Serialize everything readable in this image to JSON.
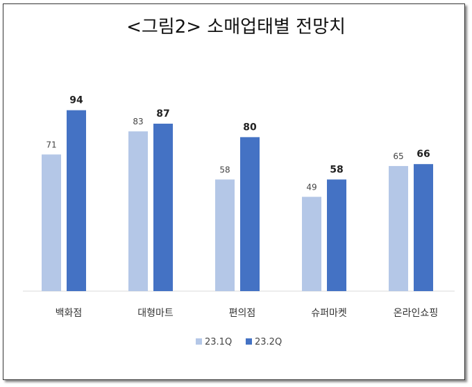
{
  "chart_data": {
    "type": "bar",
    "title": "<그림2> 소매업태별 전망치",
    "categories": [
      "백화점",
      "대형마트",
      "편의점",
      "슈퍼마켓",
      "온라인쇼핑"
    ],
    "series": [
      {
        "name": "23.1Q",
        "values": [
          71,
          83,
          58,
          49,
          65
        ],
        "color": "#b4c7e7"
      },
      {
        "name": "23.2Q",
        "values": [
          94,
          87,
          80,
          58,
          66
        ],
        "color": "#4472c4"
      }
    ],
    "ylim": [
      0,
      100
    ],
    "grid": false,
    "legend": "bottom"
  }
}
